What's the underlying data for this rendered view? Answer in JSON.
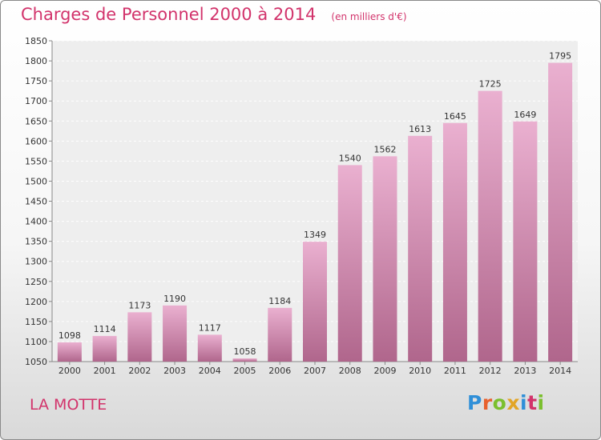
{
  "title": "Charges de Personnel 2000 à 2014",
  "subtitle": "(en milliers d'€)",
  "commune": "LA MOTTE",
  "logo_text": "Proxiti",
  "colors": {
    "accent": "#d2336b",
    "bar_light": "#eab0d0",
    "bar_dark": "#b0668c"
  },
  "chart_data": {
    "type": "bar",
    "categories": [
      "2000",
      "2001",
      "2002",
      "2003",
      "2004",
      "2005",
      "2006",
      "2007",
      "2008",
      "2009",
      "2010",
      "2011",
      "2012",
      "2013",
      "2014"
    ],
    "values": [
      1098,
      1114,
      1173,
      1190,
      1117,
      1058,
      1184,
      1349,
      1540,
      1562,
      1613,
      1645,
      1725,
      1649,
      1795
    ],
    "ylim": [
      1050,
      1850
    ],
    "yticks": [
      1050,
      1100,
      1150,
      1200,
      1250,
      1300,
      1350,
      1400,
      1450,
      1500,
      1550,
      1600,
      1650,
      1700,
      1750,
      1800,
      1850
    ],
    "grid": true
  }
}
